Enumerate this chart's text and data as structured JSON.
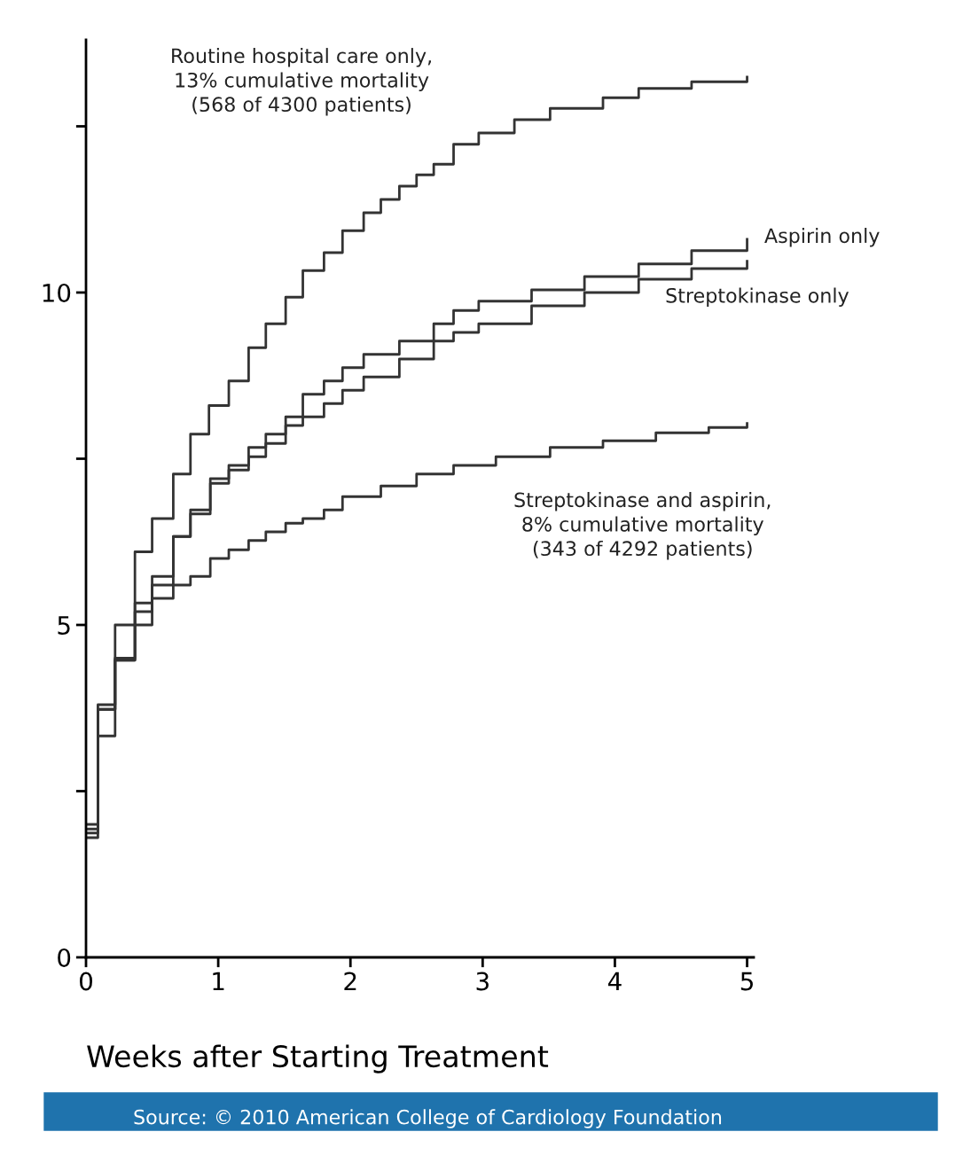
{
  "chart_data": {
    "type": "step",
    "xlabel": "Weeks after Starting Treatment",
    "xlim": [
      0,
      5.05
    ],
    "xticks": [
      0,
      1,
      2,
      3,
      4,
      5
    ],
    "ylim": [
      0,
      13.8
    ],
    "yticks": [
      0,
      {
        "value": 2.5,
        "label": null
      },
      5,
      {
        "value": 7.5,
        "label": null
      },
      10,
      {
        "value": 12.5,
        "label": null
      }
    ],
    "grid": false,
    "series": [
      {
        "name": "Routine hospital care only,\n13% cumulative mortality\n(568 of 4300 patients)",
        "color": "#333333",
        "x": [
          0,
          0.09,
          0.22,
          0.37,
          0.5,
          0.66,
          0.79,
          0.93,
          1.08,
          1.23,
          1.36,
          1.51,
          1.64,
          1.8,
          1.94,
          2.1,
          2.23,
          2.37,
          2.5,
          2.63,
          2.78,
          2.97,
          3.24,
          3.51,
          3.91,
          4.18,
          4.58,
          5.0
        ],
        "values": [
          1.87,
          3.8,
          5.0,
          6.1,
          6.6,
          7.27,
          7.87,
          8.3,
          8.67,
          9.17,
          9.53,
          9.93,
          10.33,
          10.6,
          10.93,
          11.2,
          11.4,
          11.6,
          11.77,
          11.93,
          12.23,
          12.4,
          12.6,
          12.77,
          12.93,
          13.07,
          13.17,
          13.24
        ]
      },
      {
        "name": "Aspirin only",
        "color": "#333333",
        "x": [
          0,
          0.09,
          0.22,
          0.37,
          0.5,
          0.66,
          0.79,
          0.94,
          1.08,
          1.23,
          1.36,
          1.51,
          1.64,
          1.8,
          1.94,
          2.1,
          2.37,
          2.63,
          2.78,
          2.97,
          3.37,
          3.77,
          4.18,
          4.58,
          5.0
        ],
        "values": [
          1.93,
          3.73,
          4.47,
          5.33,
          5.73,
          6.33,
          6.73,
          7.2,
          7.4,
          7.67,
          7.87,
          8.13,
          8.47,
          8.67,
          8.87,
          9.07,
          9.27,
          9.53,
          9.73,
          9.87,
          10.04,
          10.24,
          10.43,
          10.63,
          10.8
        ]
      },
      {
        "name": "Streptokinase only",
        "color": "#333333",
        "x": [
          0,
          0.09,
          0.22,
          0.37,
          0.5,
          0.66,
          0.79,
          0.94,
          1.08,
          1.23,
          1.36,
          1.51,
          1.64,
          1.8,
          1.94,
          2.1,
          2.37,
          2.63,
          2.78,
          2.97,
          3.37,
          3.77,
          4.18,
          4.58,
          5.0
        ],
        "values": [
          2.0,
          3.33,
          4.5,
          5.0,
          5.6,
          6.33,
          6.67,
          7.13,
          7.33,
          7.53,
          7.73,
          8.0,
          8.13,
          8.33,
          8.53,
          8.73,
          9.0,
          9.27,
          9.4,
          9.53,
          9.8,
          10.0,
          10.2,
          10.36,
          10.47
        ]
      },
      {
        "name": "Streptokinase and aspirin,\n8% cumulative mortality\n(343 of 4292 patients)",
        "color": "#333333",
        "x": [
          0,
          0.09,
          0.22,
          0.37,
          0.5,
          0.66,
          0.79,
          0.94,
          1.08,
          1.23,
          1.36,
          1.51,
          1.64,
          1.8,
          1.94,
          2.23,
          2.5,
          2.78,
          3.1,
          3.51,
          3.91,
          4.31,
          4.71,
          5.0
        ],
        "values": [
          1.8,
          3.73,
          4.47,
          5.2,
          5.4,
          5.6,
          5.73,
          6.0,
          6.13,
          6.27,
          6.4,
          6.53,
          6.6,
          6.73,
          6.93,
          7.09,
          7.27,
          7.4,
          7.53,
          7.67,
          7.77,
          7.89,
          7.97,
          8.03
        ]
      }
    ],
    "annotations": [
      "Source: © 2010 American College of Cardiology Foundation"
    ]
  }
}
